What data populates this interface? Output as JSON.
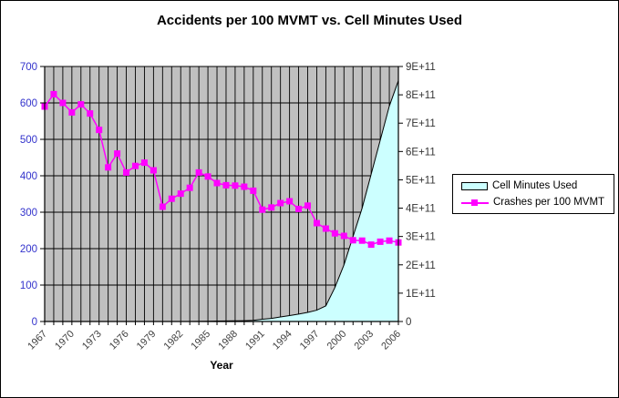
{
  "chart_data": {
    "type": "combo",
    "title": "Accidents per 100 MVMT vs. Cell Minutes Used",
    "xlabel": "Year",
    "plot_bg": "#C0C0C0",
    "grid": true,
    "legend_position": "right",
    "categories": [
      1967,
      1968,
      1969,
      1970,
      1971,
      1972,
      1973,
      1974,
      1975,
      1976,
      1977,
      1978,
      1979,
      1980,
      1981,
      1982,
      1983,
      1984,
      1985,
      1986,
      1987,
      1988,
      1989,
      1990,
      1991,
      1992,
      1993,
      1994,
      1995,
      1996,
      1997,
      1998,
      1999,
      2000,
      2001,
      2002,
      2003,
      2004,
      2005,
      2006
    ],
    "x_tick_labels": [
      "1967",
      "1970",
      "1973",
      "1976",
      "1979",
      "1982",
      "1985",
      "1988",
      "1991",
      "1994",
      "1997",
      "2000",
      "2003",
      "2006"
    ],
    "x_tick_label_color": "#404040",
    "left_axis": {
      "min": 0,
      "max": 700,
      "step": 100,
      "tick_labels": [
        "0",
        "100",
        "200",
        "300",
        "400",
        "500",
        "600",
        "700"
      ],
      "label_color": "#3333CC"
    },
    "right_axis": {
      "min": 0,
      "max": 900000000000,
      "step": 100000000000,
      "tick_labels": [
        "0",
        "1E+11",
        "2E+11",
        "3E+11",
        "4E+11",
        "5E+11",
        "6E+11",
        "7E+11",
        "8E+11",
        "9E+11"
      ],
      "label_color": "#333333"
    },
    "series": [
      {
        "name": "Cell Minutes Used",
        "type": "area",
        "axis": "right",
        "fill": "#CCFFFF",
        "stroke": "#000000",
        "values": [
          0,
          0,
          0,
          0,
          0,
          0,
          0,
          0,
          0,
          0,
          0,
          0,
          0,
          0,
          0,
          0,
          0,
          500000000.0,
          1000000000.0,
          1500000000.0,
          2000000000.0,
          2500000000.0,
          3000000000.0,
          4000000000.0,
          8000000000.0,
          11000000000.0,
          16000000000.0,
          21000000000.0,
          26000000000.0,
          32000000000.0,
          40000000000.0,
          55000000000.0,
          120000000000.0,
          200000000000.0,
          300000000000.0,
          400000000000.0,
          520000000000.0,
          640000000000.0,
          760000000000.0,
          850000000000.0
        ]
      },
      {
        "name": "Crashes per 100 MVMT",
        "type": "line",
        "axis": "left",
        "color": "#FF00FF",
        "marker": "square",
        "values": [
          590,
          624,
          600,
          574,
          596,
          571,
          526,
          423,
          461,
          409,
          427,
          436,
          415,
          315,
          337,
          351,
          367,
          409,
          398,
          380,
          374,
          373,
          370,
          359,
          307,
          313,
          325,
          330,
          309,
          318,
          270,
          255,
          242,
          235,
          223,
          222,
          211,
          219,
          222,
          217
        ]
      }
    ]
  },
  "legend": {
    "items": [
      {
        "label": "Cell Minutes Used",
        "swatch_color": "#CCFFFF"
      },
      {
        "label": "Crashes per 100 MVMT",
        "swatch_color": "#FF00FF"
      }
    ]
  }
}
